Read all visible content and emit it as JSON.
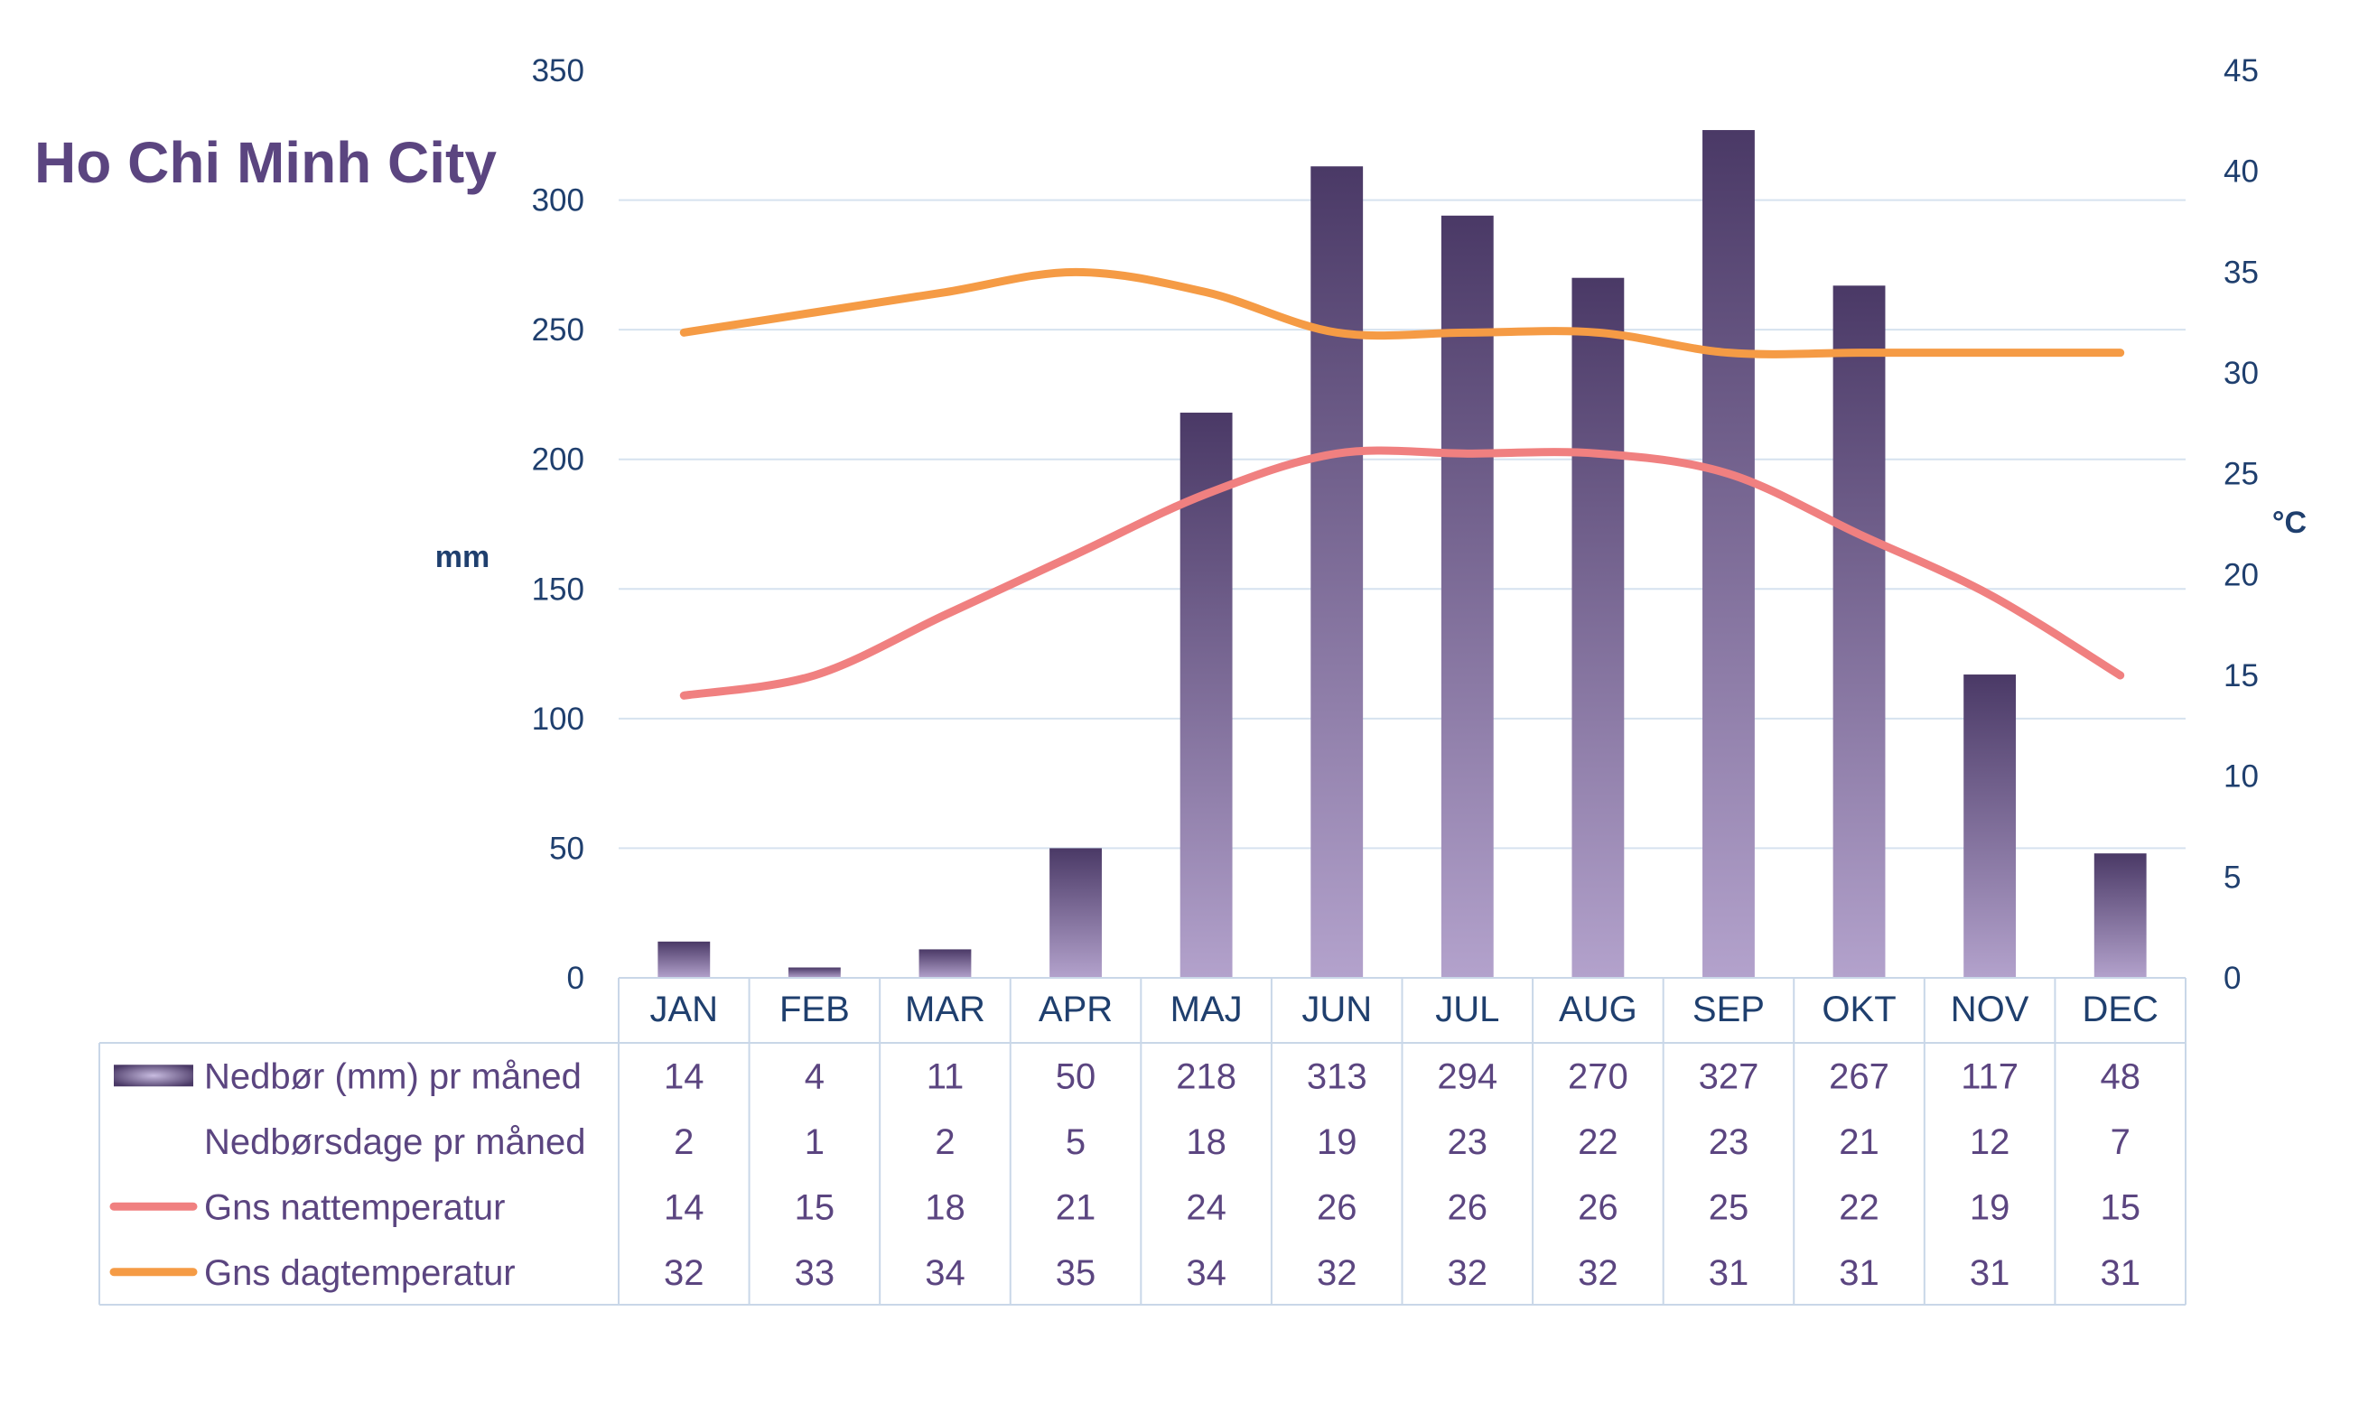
{
  "colors": {
    "title": "#5b4580",
    "axis_text": "#1f3f6e",
    "grid": "#d6e2ef",
    "table_border": "#c9d7e8",
    "bar_top": "#4a3966",
    "bar_bottom": "#b3a2cc",
    "night_line": "#f08080",
    "day_line": "#f59b45",
    "table_text": "#5b4580"
  },
  "chart_data": {
    "type": "bar+line",
    "title": "Ho Chi Minh City",
    "ylabel_left": "mm",
    "ylabel_right": "°C",
    "ylim_left": [
      0,
      350
    ],
    "ylim_right": [
      0,
      45
    ],
    "yticks_left": [
      "0",
      "50",
      "100",
      "150",
      "200",
      "250",
      "300",
      "350"
    ],
    "yticks_right": [
      "0",
      "5",
      "10",
      "15",
      "20",
      "25",
      "30",
      "35",
      "40",
      "45"
    ],
    "grid": true,
    "categories": [
      "JAN",
      "FEB",
      "MAR",
      "APR",
      "MAJ",
      "JUN",
      "JUL",
      "AUG",
      "SEP",
      "OKT",
      "NOV",
      "DEC"
    ],
    "series": [
      {
        "name": "Nedbør (mm) pr måned",
        "kind": "bar",
        "axis": "left",
        "values": [
          14,
          4,
          11,
          50,
          218,
          313,
          294,
          270,
          327,
          267,
          117,
          48
        ]
      },
      {
        "name": "Nedbørsdage pr måned",
        "kind": "table-only",
        "values": [
          2,
          1,
          2,
          5,
          18,
          19,
          23,
          22,
          23,
          21,
          12,
          7
        ]
      },
      {
        "name": "Gns nattemperatur",
        "kind": "line",
        "axis": "right",
        "values": [
          14,
          15,
          18,
          21,
          24,
          26,
          26,
          26,
          25,
          22,
          19,
          15
        ]
      },
      {
        "name": "Gns dagtemperatur",
        "kind": "line",
        "axis": "right",
        "values": [
          32,
          33,
          34,
          35,
          34,
          32,
          32,
          32,
          31,
          31,
          31,
          31
        ]
      }
    ]
  }
}
